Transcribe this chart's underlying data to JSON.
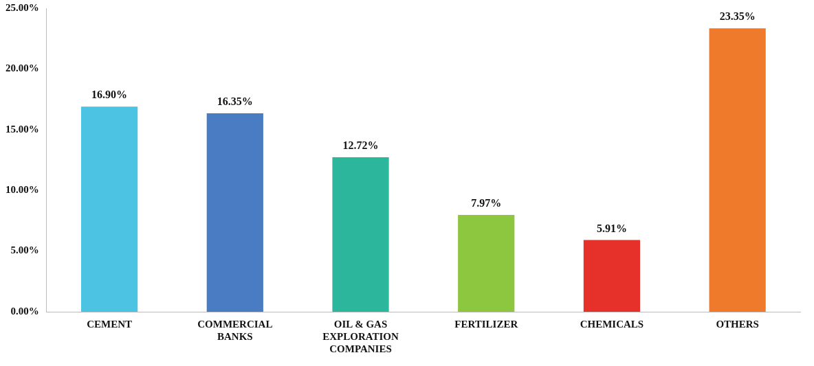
{
  "chart_data": {
    "type": "bar",
    "categories": [
      "CEMENT",
      "COMMERCIAL BANKS",
      "OIL & GAS EXPLORATION COMPANIES",
      "FERTILIZER",
      "CHEMICALS",
      "OTHERS"
    ],
    "values": [
      16.9,
      16.35,
      12.72,
      7.97,
      5.91,
      23.35
    ],
    "colors": [
      "#4cc3e2",
      "#4a7cc4",
      "#2cb69c",
      "#8dc63f",
      "#e6302a",
      "#f07a2c"
    ],
    "value_labels": [
      "16.90%",
      "16.35%",
      "12.72%",
      "7.97%",
      "5.91%",
      "23.35%"
    ],
    "ylim": [
      0,
      25
    ],
    "yticks": [
      {
        "value": 0,
        "label": "0.00%"
      },
      {
        "value": 5,
        "label": "5.00%"
      },
      {
        "value": 10,
        "label": "10.00%"
      },
      {
        "value": 15,
        "label": "15.00%"
      },
      {
        "value": 20,
        "label": "20.00%"
      },
      {
        "value": 25,
        "label": "25.00%"
      }
    ],
    "grid": false,
    "legend": false
  }
}
